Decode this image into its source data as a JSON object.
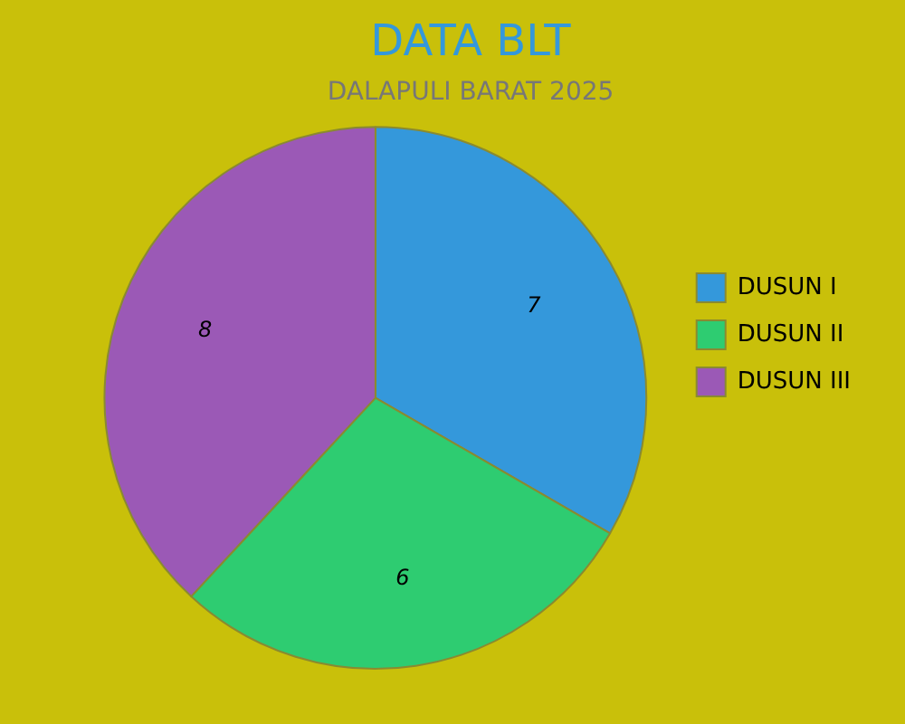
{
  "chart_data": {
    "type": "pie",
    "title": "DATA BLT",
    "subtitle": "DALAPULI BARAT 2025",
    "categories": [
      "DUSUN I",
      "DUSUN II",
      "DUSUN III"
    ],
    "values": [
      7,
      6,
      8
    ],
    "colors": [
      "#3498db",
      "#2ecc71",
      "#9b59b6"
    ],
    "data_labels": true,
    "legend": "right"
  }
}
